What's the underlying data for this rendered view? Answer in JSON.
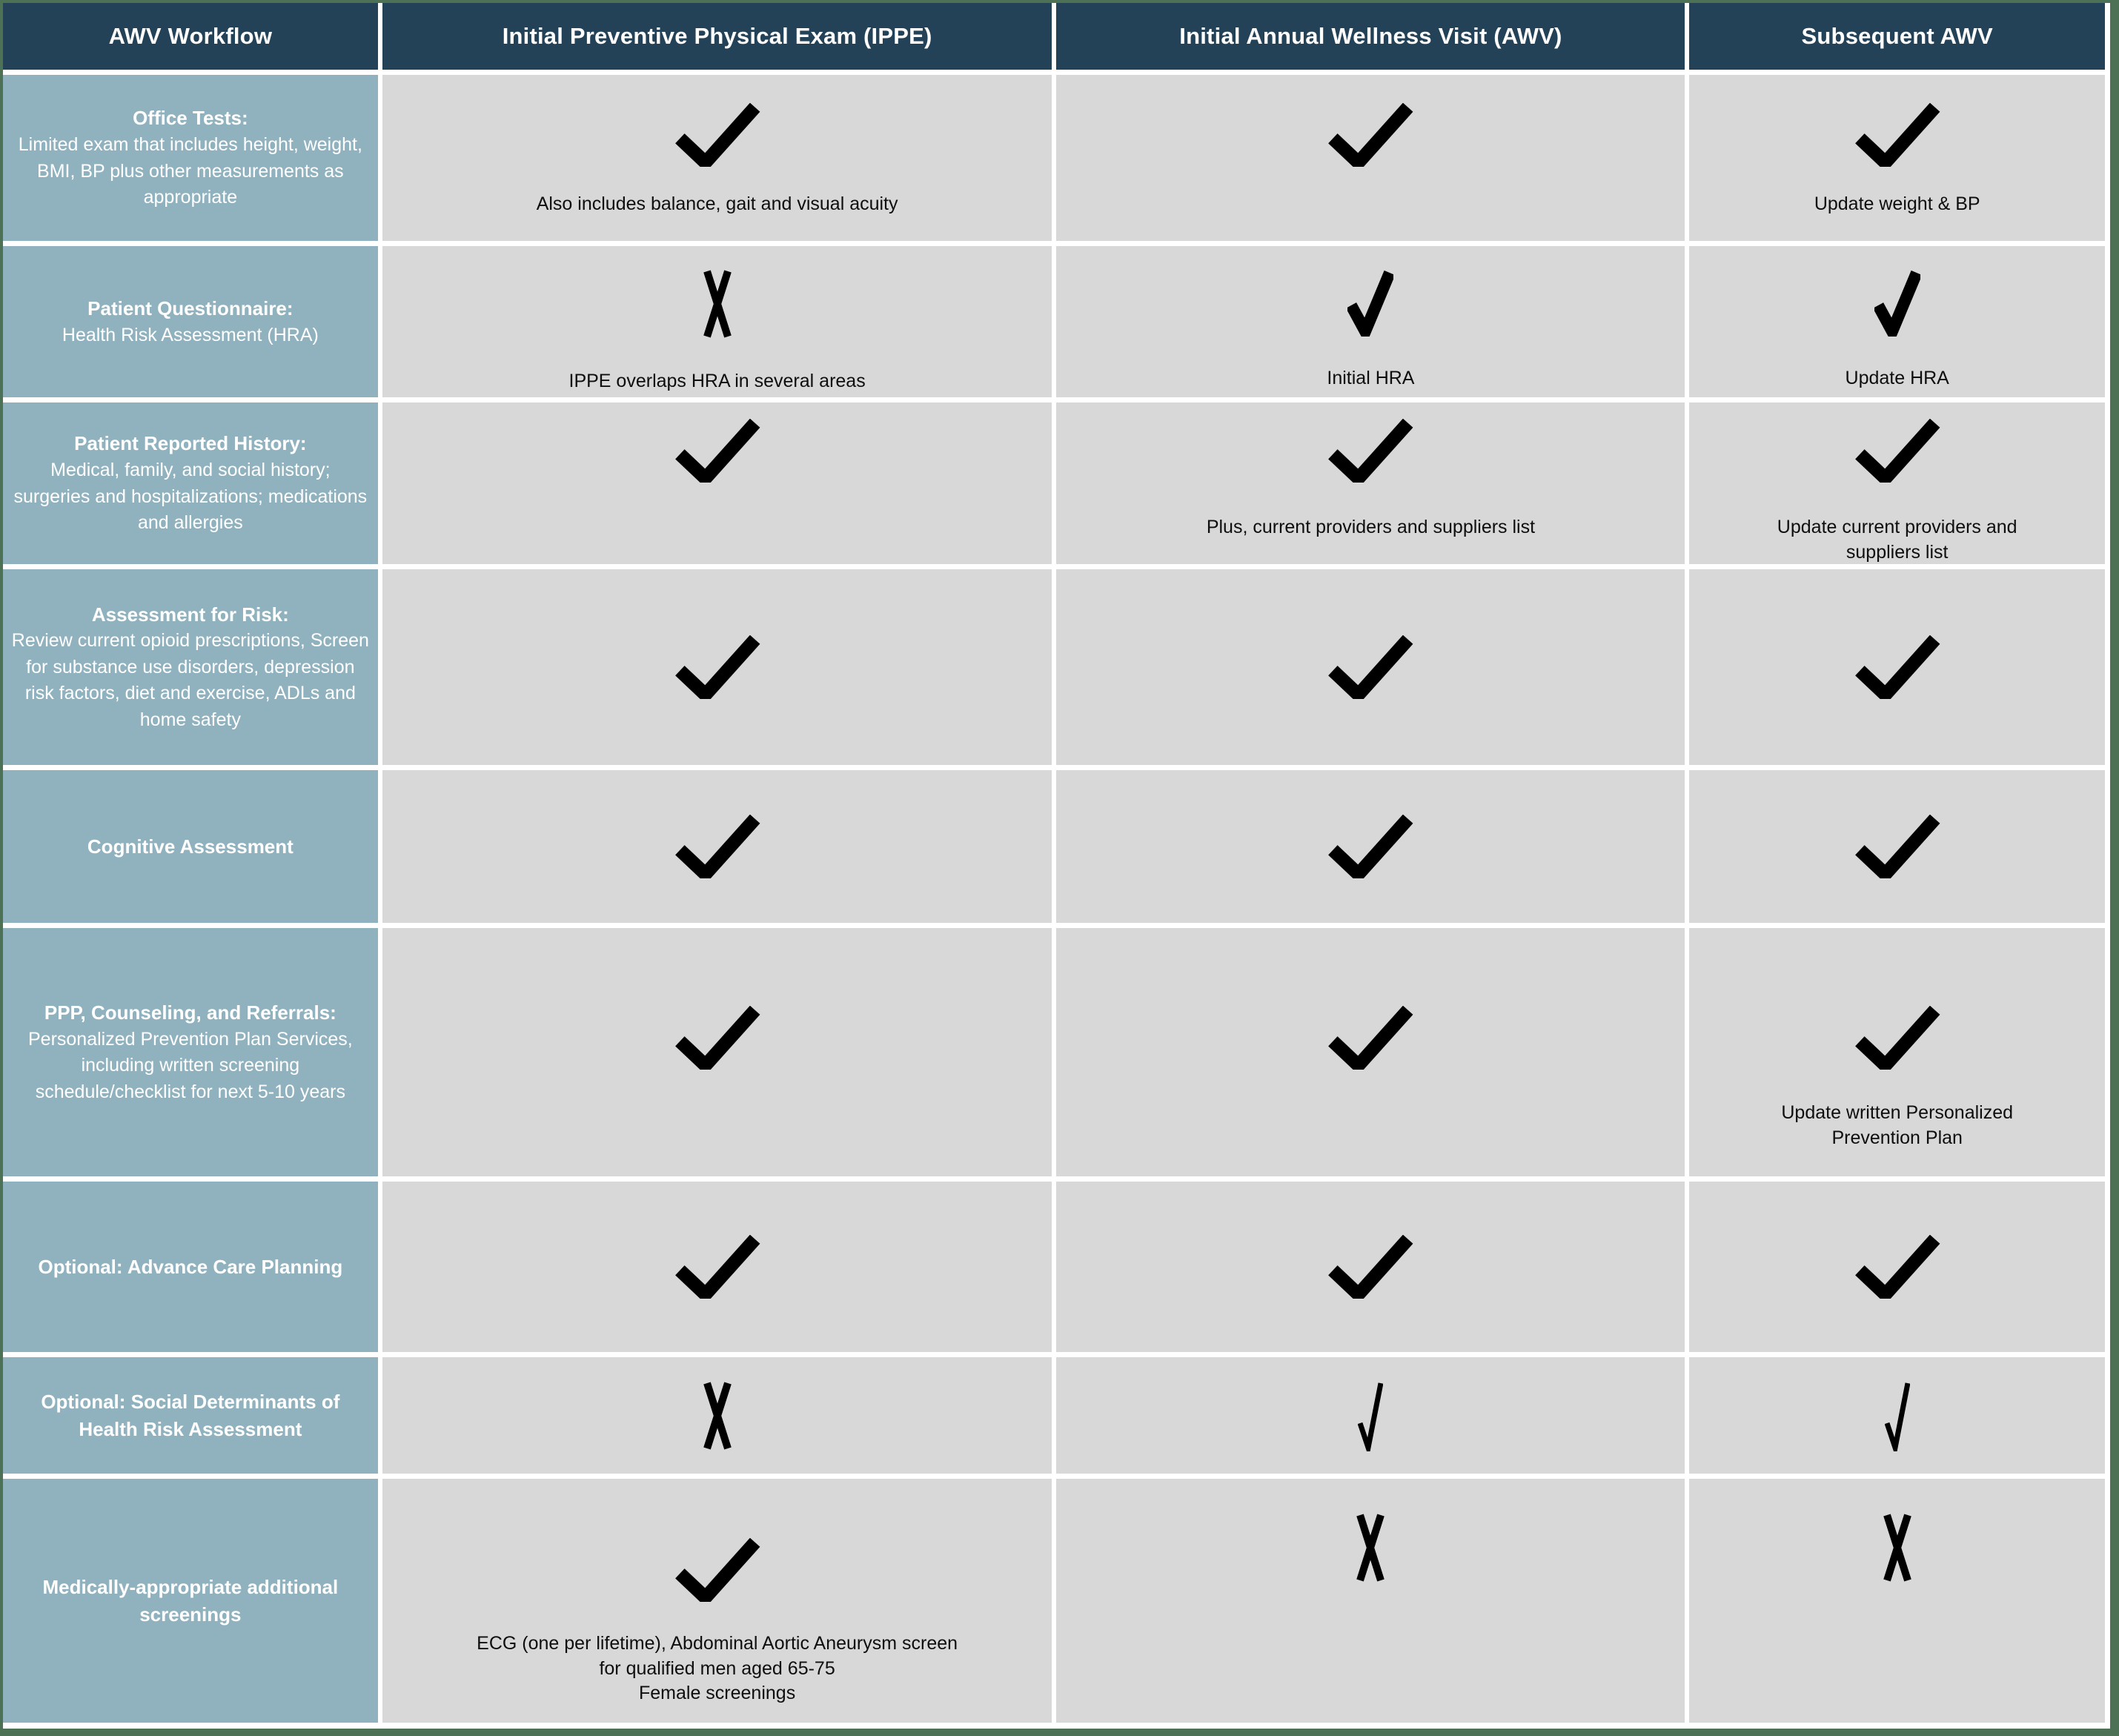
{
  "table_title": "AWV Workflow",
  "colors": {
    "header_bg": "#234258",
    "row_label_bg": "#90b2bf",
    "cell_bg": "#d8d8d8",
    "frame_green": "#4d7155",
    "gap_white": "#ffffff",
    "mark_black": "#000000",
    "header_text": "#ffffff",
    "label_text": "#ffffff",
    "note_text": "#0e0e0e"
  },
  "header": {
    "columns": [
      "AWV Workflow",
      "Initial Preventive Physical Exam (IPPE)",
      "Initial Annual Wellness Visit (AWV)",
      "Subsequent AWV"
    ]
  },
  "rows": [
    {
      "label": {
        "title": "Office Tests:",
        "desc": "Limited exam that includes height, weight, BMI, BP plus other measurements as appropriate"
      },
      "cells": {
        "ippe": {
          "mark": "check",
          "note": "Also includes balance, gait and visual acuity"
        },
        "awv": {
          "mark": "check",
          "note": ""
        },
        "subsequent": {
          "mark": "check",
          "note": "Update weight & BP"
        }
      }
    },
    {
      "label": {
        "title": "Patient Questionnaire:",
        "desc": "Health Risk Assessment (HRA)"
      },
      "cells": {
        "ippe": {
          "mark": "x",
          "note": "IPPE overlaps HRA in several areas"
        },
        "awv": {
          "mark": "check-steep",
          "note": "Initial HRA"
        },
        "subsequent": {
          "mark": "check-steep",
          "note": "Update HRA"
        }
      }
    },
    {
      "label": {
        "title": "Patient Reported History:",
        "desc": "Medical, family, and social history; surgeries and  hospitalizations; medications and allergies"
      },
      "cells": {
        "ippe": {
          "mark": "check",
          "note": ""
        },
        "awv": {
          "mark": "check",
          "note": "Plus, current providers and suppliers list"
        },
        "subsequent": {
          "mark": "check",
          "note": "Update current providers and\nsuppliers list"
        }
      }
    },
    {
      "label": {
        "title": "Assessment for Risk:",
        "desc": "Review current opioid prescriptions, Screen for substance use disorders, depression risk factors, diet and exercise, ADLs and home safety"
      },
      "cells": {
        "ippe": {
          "mark": "check",
          "note": ""
        },
        "awv": {
          "mark": "check",
          "note": ""
        },
        "subsequent": {
          "mark": "check",
          "note": ""
        }
      }
    },
    {
      "label": {
        "title": "Cognitive Assessment",
        "desc": ""
      },
      "cells": {
        "ippe": {
          "mark": "check",
          "note": ""
        },
        "awv": {
          "mark": "check",
          "note": ""
        },
        "subsequent": {
          "mark": "check",
          "note": ""
        }
      }
    },
    {
      "label": {
        "title": "PPP, Counseling, and Referrals:",
        "desc": "Personalized Prevention Plan Services, including written screening schedule/checklist for next 5-10 years"
      },
      "cells": {
        "ippe": {
          "mark": "check",
          "note": ""
        },
        "awv": {
          "mark": "check",
          "note": ""
        },
        "subsequent": {
          "mark": "check",
          "note": "Update written Personalized\nPrevention Plan"
        }
      }
    },
    {
      "label": {
        "title": "Optional: Advance Care Planning",
        "desc": ""
      },
      "cells": {
        "ippe": {
          "mark": "check",
          "note": ""
        },
        "awv": {
          "mark": "check",
          "note": ""
        },
        "subsequent": {
          "mark": "check",
          "note": ""
        }
      }
    },
    {
      "label": {
        "title": "Optional: Social Determinants of Health Risk Assessment",
        "desc": ""
      },
      "cells": {
        "ippe": {
          "mark": "x",
          "note": ""
        },
        "awv": {
          "mark": "check-thin",
          "note": ""
        },
        "subsequent": {
          "mark": "check-thin",
          "note": ""
        }
      }
    },
    {
      "label": {
        "title": "Medically-appropriate additional screenings",
        "desc": ""
      },
      "cells": {
        "ippe": {
          "mark": "check",
          "note": "ECG (one per lifetime), Abdominal Aortic Aneurysm screen\nfor qualified men aged 65-75\nFemale screenings"
        },
        "awv": {
          "mark": "x",
          "note": ""
        },
        "subsequent": {
          "mark": "x",
          "note": ""
        }
      }
    }
  ],
  "marks_legend": {
    "check": "included in visit",
    "x": "not included in visit"
  }
}
